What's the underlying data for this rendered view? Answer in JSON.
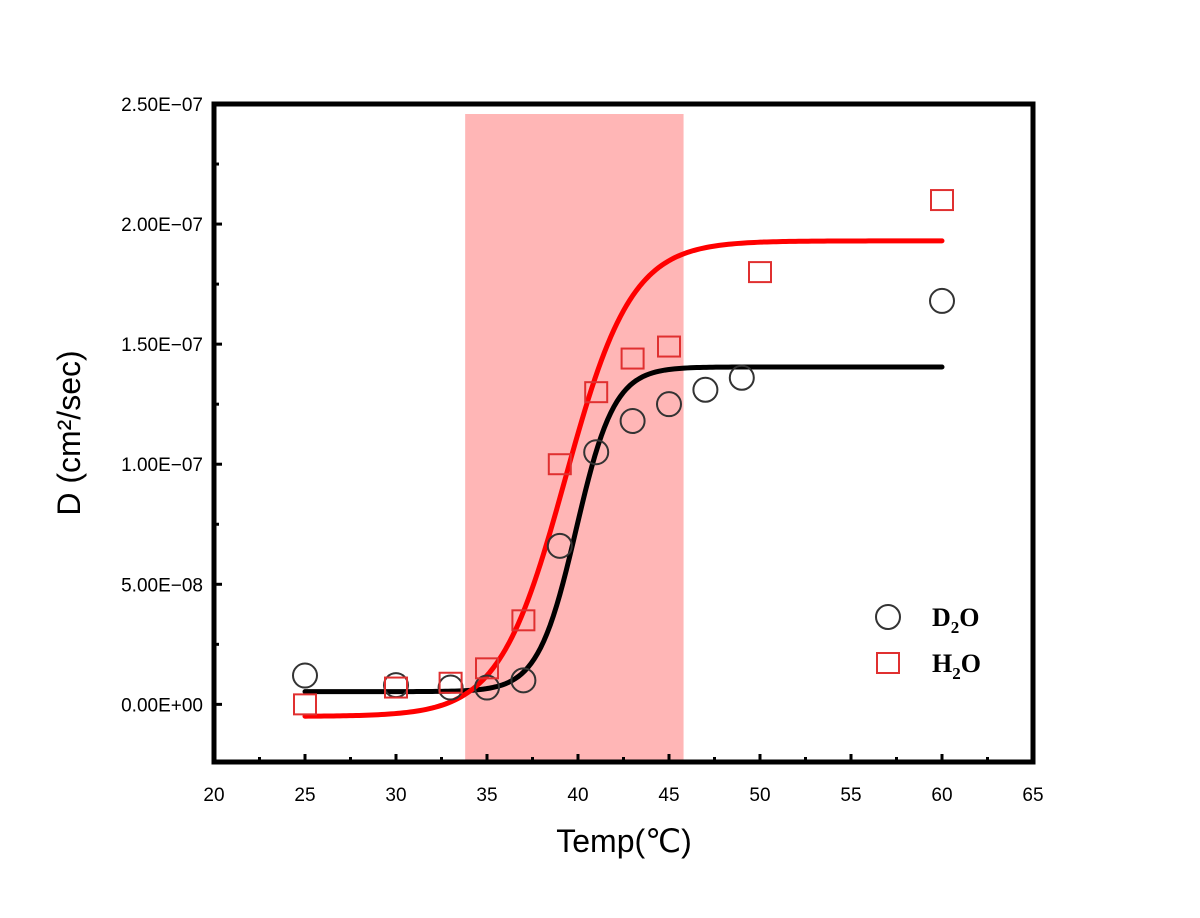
{
  "chart_data": {
    "type": "scatter",
    "title": "",
    "xlabel": "Temp(℃)",
    "ylabel": "D (cm²/sec)",
    "xlim": [
      20,
      65
    ],
    "ylim": [
      -2.4e-08,
      2.5e-07
    ],
    "x_ticks": [
      20,
      25,
      30,
      35,
      40,
      45,
      50,
      55,
      60,
      65
    ],
    "x_tick_labels": [
      "20",
      "25",
      "30",
      "35",
      "40",
      "45",
      "50",
      "55",
      "60",
      "65"
    ],
    "y_ticks": [
      0,
      5e-08,
      1e-07,
      1.5e-07,
      2e-07,
      2.5e-07
    ],
    "y_tick_labels": [
      "0.00E+00",
      "5.00E−08",
      "1.00E−07",
      "1.50E−07",
      "2.00E−07",
      "2.50E−07"
    ],
    "grid": false,
    "legend_position": "bottom-right",
    "shaded_region": {
      "x_start": 33.8,
      "x_end": 45.8,
      "color": "#ffb6b6"
    },
    "series": [
      {
        "name_main": "D",
        "name_sub": "2",
        "name_tail": "O",
        "marker": "circle",
        "color": "#333333",
        "x": [
          25,
          30,
          33,
          35,
          37,
          39,
          41,
          43,
          45,
          47,
          49,
          60
        ],
        "y": [
          1.2e-08,
          8e-09,
          7e-09,
          7e-09,
          1e-08,
          6.6e-08,
          1.05e-07,
          1.18e-07,
          1.25e-07,
          1.31e-07,
          1.36e-07,
          1.68e-07
        ],
        "fit": {
          "bottom": 5.3e-09,
          "top": 1.405e-07,
          "x0": 39.9,
          "k": 0.95,
          "x_range": [
            25,
            60
          ],
          "color": "#000000"
        }
      },
      {
        "name_main": "H",
        "name_sub": "2",
        "name_tail": "O",
        "marker": "square",
        "color": "#e03030",
        "x": [
          25,
          30,
          33,
          35,
          37,
          39,
          41,
          43,
          45,
          50,
          60
        ],
        "y": [
          0,
          7e-09,
          9e-09,
          1.5e-08,
          3.5e-08,
          1e-07,
          1.3e-07,
          1.44e-07,
          1.49e-07,
          1.8e-07,
          2.1e-07
        ],
        "fit": {
          "bottom": -5e-09,
          "top": 1.93e-07,
          "x0": 39.3,
          "k": 0.55,
          "x_range": [
            25,
            60
          ],
          "color": "#ff0000"
        }
      }
    ]
  }
}
